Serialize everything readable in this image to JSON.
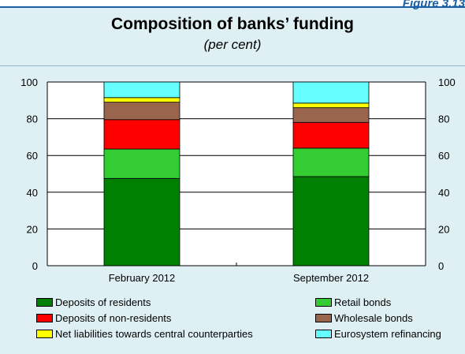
{
  "figure_label": "Figure 3.13",
  "chart_data": {
    "type": "bar",
    "stacked": true,
    "title": "Composition of banks’ funding",
    "subtitle": "(per cent)",
    "xlabel": "",
    "ylabel": "",
    "ylim": [
      0,
      100
    ],
    "yticks": [
      0,
      20,
      40,
      60,
      80,
      100
    ],
    "grid": true,
    "legend_position": "bottom",
    "categories": [
      "February 2012",
      "September 2012"
    ],
    "series": [
      {
        "name": "Deposits of residents",
        "color": "#008000",
        "values": [
          47.5,
          48.5
        ]
      },
      {
        "name": "Retail bonds",
        "color": "#33cc33",
        "values": [
          16,
          15.5
        ]
      },
      {
        "name": "Deposits of non-residents",
        "color": "#ff0000",
        "values": [
          16,
          14
        ]
      },
      {
        "name": "Wholesale bonds",
        "color": "#99664d",
        "values": [
          9.5,
          8
        ]
      },
      {
        "name": "Net liabilities towards central counterparties",
        "color": "#ffff00",
        "values": [
          2.5,
          2.5
        ]
      },
      {
        "name": "Eurosystem refinancing",
        "color": "#66ffff",
        "values": [
          8.5,
          11.5
        ]
      }
    ]
  },
  "legend": {
    "left": [
      {
        "label": "Deposits of residents",
        "color": "#008000"
      },
      {
        "label": "Deposits of non-residents",
        "color": "#ff0000"
      },
      {
        "label": "Net liabilities towards central counterparties",
        "color": "#ffff00"
      }
    ],
    "right": [
      {
        "label": "Retail bonds",
        "color": "#33cc33"
      },
      {
        "label": "Wholesale bonds",
        "color": "#99664d"
      },
      {
        "label": "Eurosystem refinancing",
        "color": "#66ffff"
      }
    ]
  }
}
